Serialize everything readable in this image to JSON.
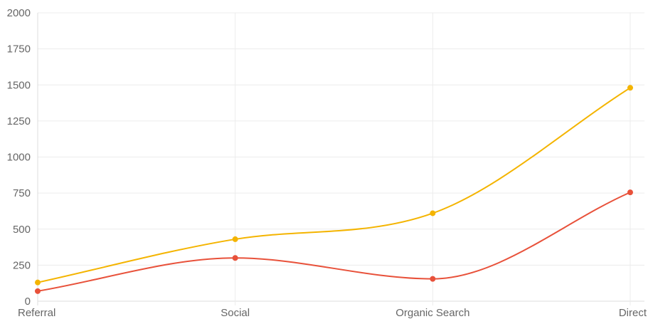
{
  "chart_data": {
    "type": "line",
    "categories": [
      "Referral",
      "Social",
      "Organic Search",
      "Direct"
    ],
    "series": [
      {
        "values": [
          130,
          430,
          610,
          1480
        ],
        "color": "#f4b400"
      },
      {
        "values": [
          70,
          300,
          155,
          755
        ],
        "color": "#e8513a"
      }
    ],
    "ylim": [
      0,
      2000
    ],
    "yticks": [
      0,
      250,
      500,
      750,
      1000,
      1250,
      1500,
      1750,
      2000
    ],
    "grid": true,
    "curve": "smooth",
    "title": "",
    "xlabel": "",
    "ylabel": ""
  }
}
